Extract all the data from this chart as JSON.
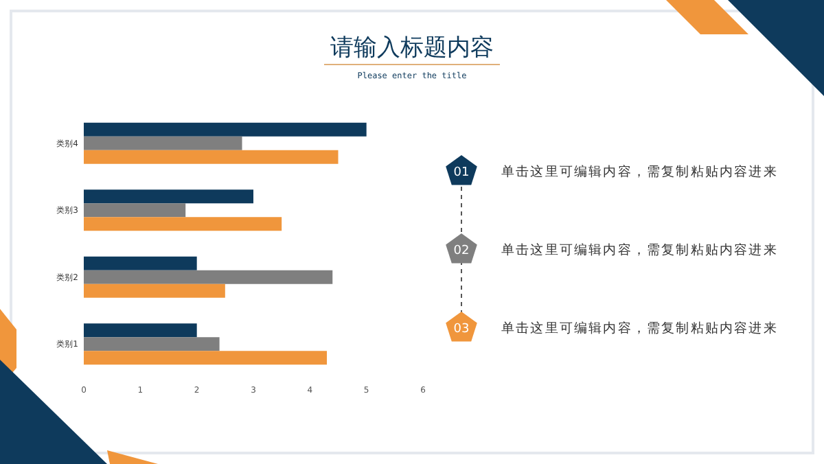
{
  "chart_data": {
    "type": "bar",
    "orientation": "horizontal",
    "title": "请输入标题内容",
    "subtitle": "Please enter the title",
    "categories": [
      "类别4",
      "类别3",
      "类别2",
      "类别1"
    ],
    "series": [
      {
        "color": "#0e3a5c",
        "values": [
          5,
          3,
          2,
          2
        ]
      },
      {
        "color": "#7f7f7f",
        "values": [
          2.8,
          1.8,
          4.4,
          2.4
        ]
      },
      {
        "color": "#f0963c",
        "values": [
          4.5,
          3.5,
          2.5,
          4.3
        ]
      }
    ],
    "xlim": [
      0,
      6
    ],
    "xticks": [
      0,
      1,
      2,
      3,
      4,
      5,
      6
    ],
    "grid": false,
    "annotations": [
      "01",
      "单击这里可编辑内容，需复制粘贴内容进来",
      "02",
      "单击这里可编辑内容，需复制粘贴内容进来",
      "03",
      "单击这里可编辑内容，需复制粘贴内容进来"
    ]
  }
}
